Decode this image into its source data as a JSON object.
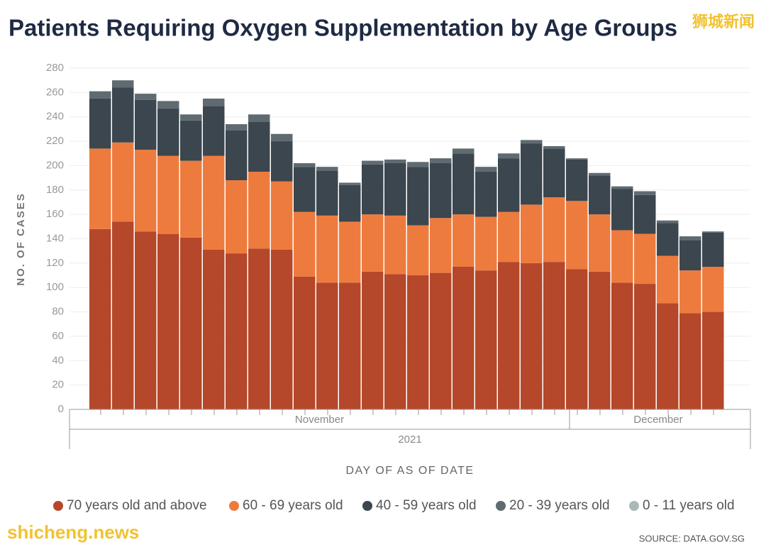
{
  "chart_data": {
    "type": "stacked_bar",
    "title": "Patients Requiring Oxygen Supplementation by Age Groups",
    "y_label": "NO. OF CASES",
    "x_label": "DAY OF AS OF DATE",
    "source": "SOURCE: DATA.GOV.SG",
    "watermarks": [
      "狮城新闻",
      "shicheng.news"
    ],
    "categories": [
      null,
      null,
      null,
      null,
      null,
      null,
      null,
      null,
      null,
      null,
      null,
      null,
      null,
      null,
      null,
      null,
      null,
      null,
      null,
      null,
      null,
      null,
      null,
      null,
      null,
      null,
      null,
      null
    ],
    "x_groups": [
      {
        "label": "November",
        "span": 21
      },
      {
        "label": "December",
        "span": 7
      }
    ],
    "x_group_outer": "2021",
    "ylim": [
      0,
      280
    ],
    "yticks": [
      0,
      20,
      40,
      60,
      80,
      100,
      120,
      140,
      160,
      180,
      200,
      220,
      240,
      260,
      280
    ],
    "grid": true,
    "legend": "bottom",
    "series": [
      {
        "name": "70 years old and above",
        "color": "#b5472a",
        "values": [
          148,
          154,
          146,
          144,
          141,
          131,
          128,
          132,
          131,
          109,
          104,
          104,
          113,
          111,
          110,
          112,
          117,
          114,
          121,
          120,
          121,
          115,
          113,
          104,
          103,
          87,
          79,
          80
        ]
      },
      {
        "name": "60 - 69 years old",
        "color": "#ee7b3e",
        "values": [
          66,
          65,
          67,
          64,
          63,
          77,
          60,
          63,
          56,
          53,
          55,
          50,
          47,
          48,
          41,
          45,
          43,
          44,
          41,
          48,
          53,
          56,
          47,
          43,
          41,
          39,
          35,
          37
        ]
      },
      {
        "name": "40 - 59 years old",
        "color": "#3b464f",
        "values": [
          41,
          45,
          41,
          39,
          33,
          41,
          41,
          41,
          33,
          37,
          37,
          30,
          41,
          43,
          48,
          45,
          50,
          37,
          44,
          50,
          40,
          34,
          32,
          34,
          32,
          27,
          25,
          28
        ]
      },
      {
        "name": "20 - 39 years old",
        "color": "#5f6b71",
        "values": [
          6,
          6,
          5,
          6,
          5,
          6,
          5,
          6,
          6,
          3,
          3,
          2,
          3,
          3,
          4,
          4,
          4,
          4,
          4,
          3,
          2,
          1,
          2,
          2,
          3,
          2,
          3,
          1
        ]
      },
      {
        "name": "0 - 11 years old",
        "color": "#a9b9b8",
        "values": [
          0,
          0,
          0,
          0,
          0,
          0,
          0,
          0,
          0,
          0,
          0,
          0,
          0,
          0,
          0,
          0,
          0,
          0,
          0,
          0,
          0,
          0,
          0,
          0,
          0,
          0,
          0,
          0
        ]
      }
    ]
  }
}
